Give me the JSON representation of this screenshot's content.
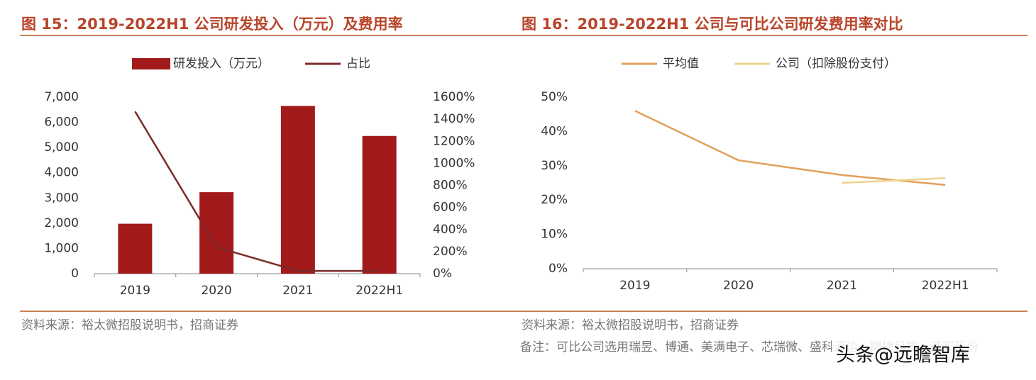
{
  "chart_data": [
    {
      "type": "bar",
      "title": "图 15：2019-2022H1 公司研发投入（万元）及费用率",
      "categories": [
        "2019",
        "2020",
        "2021",
        "2022H1"
      ],
      "series": [
        {
          "name": "研发投入（万元）",
          "type": "bar",
          "color": "#a31a1a",
          "values": [
            1980,
            3230,
            6650,
            5460
          ]
        },
        {
          "name": "占比",
          "type": "line",
          "axis": "y2",
          "color": "#7b2a2a",
          "values": [
            1470,
            240,
            25,
            25
          ]
        }
      ],
      "ylim": [
        0,
        7000
      ],
      "yticks": [
        {
          "value": 0,
          "label": "0"
        },
        {
          "value": 1000,
          "label": "1,000"
        },
        {
          "value": 2000,
          "label": "2,000"
        },
        {
          "value": 3000,
          "label": "3,000"
        },
        {
          "value": 4000,
          "label": "4,000"
        },
        {
          "value": 5000,
          "label": "5,000"
        },
        {
          "value": 6000,
          "label": "6,000"
        },
        {
          "value": 7000,
          "label": "7,000"
        }
      ],
      "y2lim": [
        0,
        1600
      ],
      "y2ticks": [
        {
          "value": 0,
          "label": "0%"
        },
        {
          "value": 200,
          "label": "200%"
        },
        {
          "value": 400,
          "label": "400%"
        },
        {
          "value": 600,
          "label": "600%"
        },
        {
          "value": 800,
          "label": "800%"
        },
        {
          "value": 1000,
          "label": "1000%"
        },
        {
          "value": 1200,
          "label": "1200%"
        },
        {
          "value": 1400,
          "label": "1400%"
        },
        {
          "value": 1600,
          "label": "1600%"
        }
      ],
      "source": "资料来源：裕太微招股说明书，招商证券"
    },
    {
      "type": "line",
      "title": "图 16：2019-2022H1 公司与可比公司研发费用率对比",
      "categories": [
        "2019",
        "2020",
        "2021",
        "2022H1"
      ],
      "series": [
        {
          "name": "平均值",
          "color": "#e0a05a",
          "values": [
            46,
            31.6,
            27.3,
            24.4
          ]
        },
        {
          "name": "公司（扣除股份支付）",
          "color": "#ecd38e",
          "values": [
            null,
            null,
            25,
            26.4
          ]
        }
      ],
      "ylim": [
        0,
        50
      ],
      "yticks": [
        {
          "value": 0,
          "label": "0%"
        },
        {
          "value": 10,
          "label": "10%"
        },
        {
          "value": 20,
          "label": "20%"
        },
        {
          "value": 30,
          "label": "30%"
        },
        {
          "value": 40,
          "label": "40%"
        },
        {
          "value": 50,
          "label": "50%"
        }
      ],
      "source": "资料来源：裕太微招股说明书，招商证券",
      "note": "备注：可比公司选用瑞昱、博通、美满电子、芯瑞微、盛科通信、翱捷科技、圣邦股份"
    }
  ],
  "watermark": "头条@远瞻智库"
}
